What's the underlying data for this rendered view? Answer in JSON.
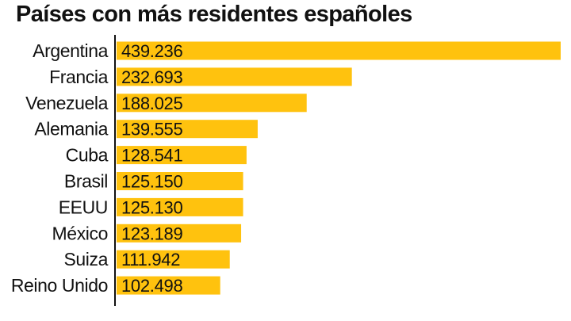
{
  "title": "Países con más residentes españoles",
  "chart_data": {
    "type": "bar",
    "orientation": "horizontal",
    "title": "Países con más residentes españoles",
    "categories": [
      "Argentina",
      "Francia",
      "Venezuela",
      "Alemania",
      "Cuba",
      "Brasil",
      "EEUU",
      "México",
      "Suiza",
      "Reino Unido"
    ],
    "values": [
      439236,
      232693,
      188025,
      139555,
      128541,
      125150,
      125130,
      123189,
      111942,
      102498
    ],
    "value_labels": [
      "439.236",
      "232.693",
      "188.025",
      "139.555",
      "128.541",
      "125.150",
      "125.130",
      "123.189",
      "111.942",
      "102.498"
    ],
    "xlabel": "",
    "ylabel": "",
    "grid": false,
    "legend": "none",
    "colors": {
      "bar": "#FFC20E",
      "axis": "#111111",
      "text": "#111111"
    }
  }
}
